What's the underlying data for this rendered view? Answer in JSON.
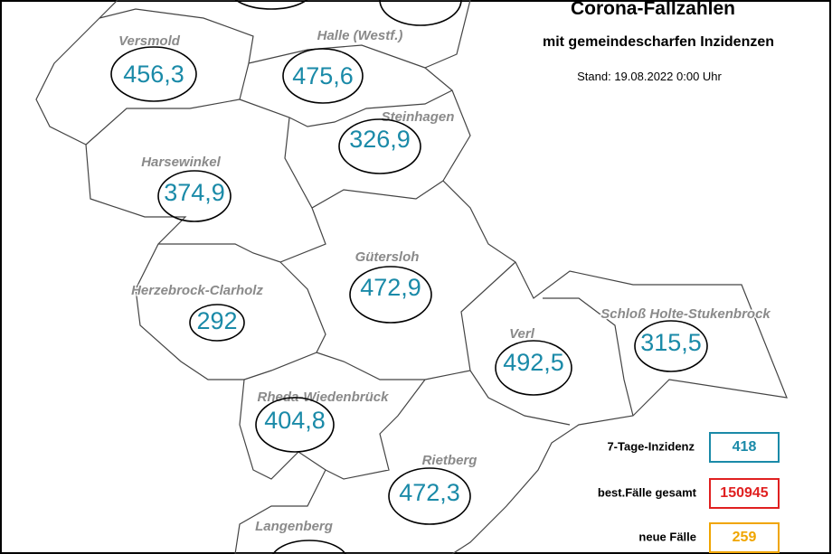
{
  "header": {
    "title": "Corona-Fallzahlen",
    "subtitle": "mit gemeindescharfen Inzidenzen",
    "stand": "Stand: 19.08.2022 0:00 Uhr"
  },
  "regions": [
    {
      "name": "Versmold",
      "value": "456,3"
    },
    {
      "name": "Halle (Westf.)",
      "value": "475,6"
    },
    {
      "name": "Steinhagen",
      "value": "326,9"
    },
    {
      "name": "Harsewinkel",
      "value": "374,9"
    },
    {
      "name": "Gütersloh",
      "value": "472,9"
    },
    {
      "name": "Herzebrock-Clarholz",
      "value": "292"
    },
    {
      "name": "Verl",
      "value": "492,5"
    },
    {
      "name": "Schloß Holte-Stukenbrock",
      "value": "315,5"
    },
    {
      "name": "Rheda-Wiedenbrück",
      "value": "404,8"
    },
    {
      "name": "Rietberg",
      "value": "472,3"
    },
    {
      "name": "Langenberg"
    }
  ],
  "legend": [
    {
      "label": "7-Tage-Inzidenz",
      "value": 418
    },
    {
      "label": "best.Fälle gesamt",
      "value": 150945
    },
    {
      "label": "neue Fälle",
      "value": 259
    }
  ]
}
